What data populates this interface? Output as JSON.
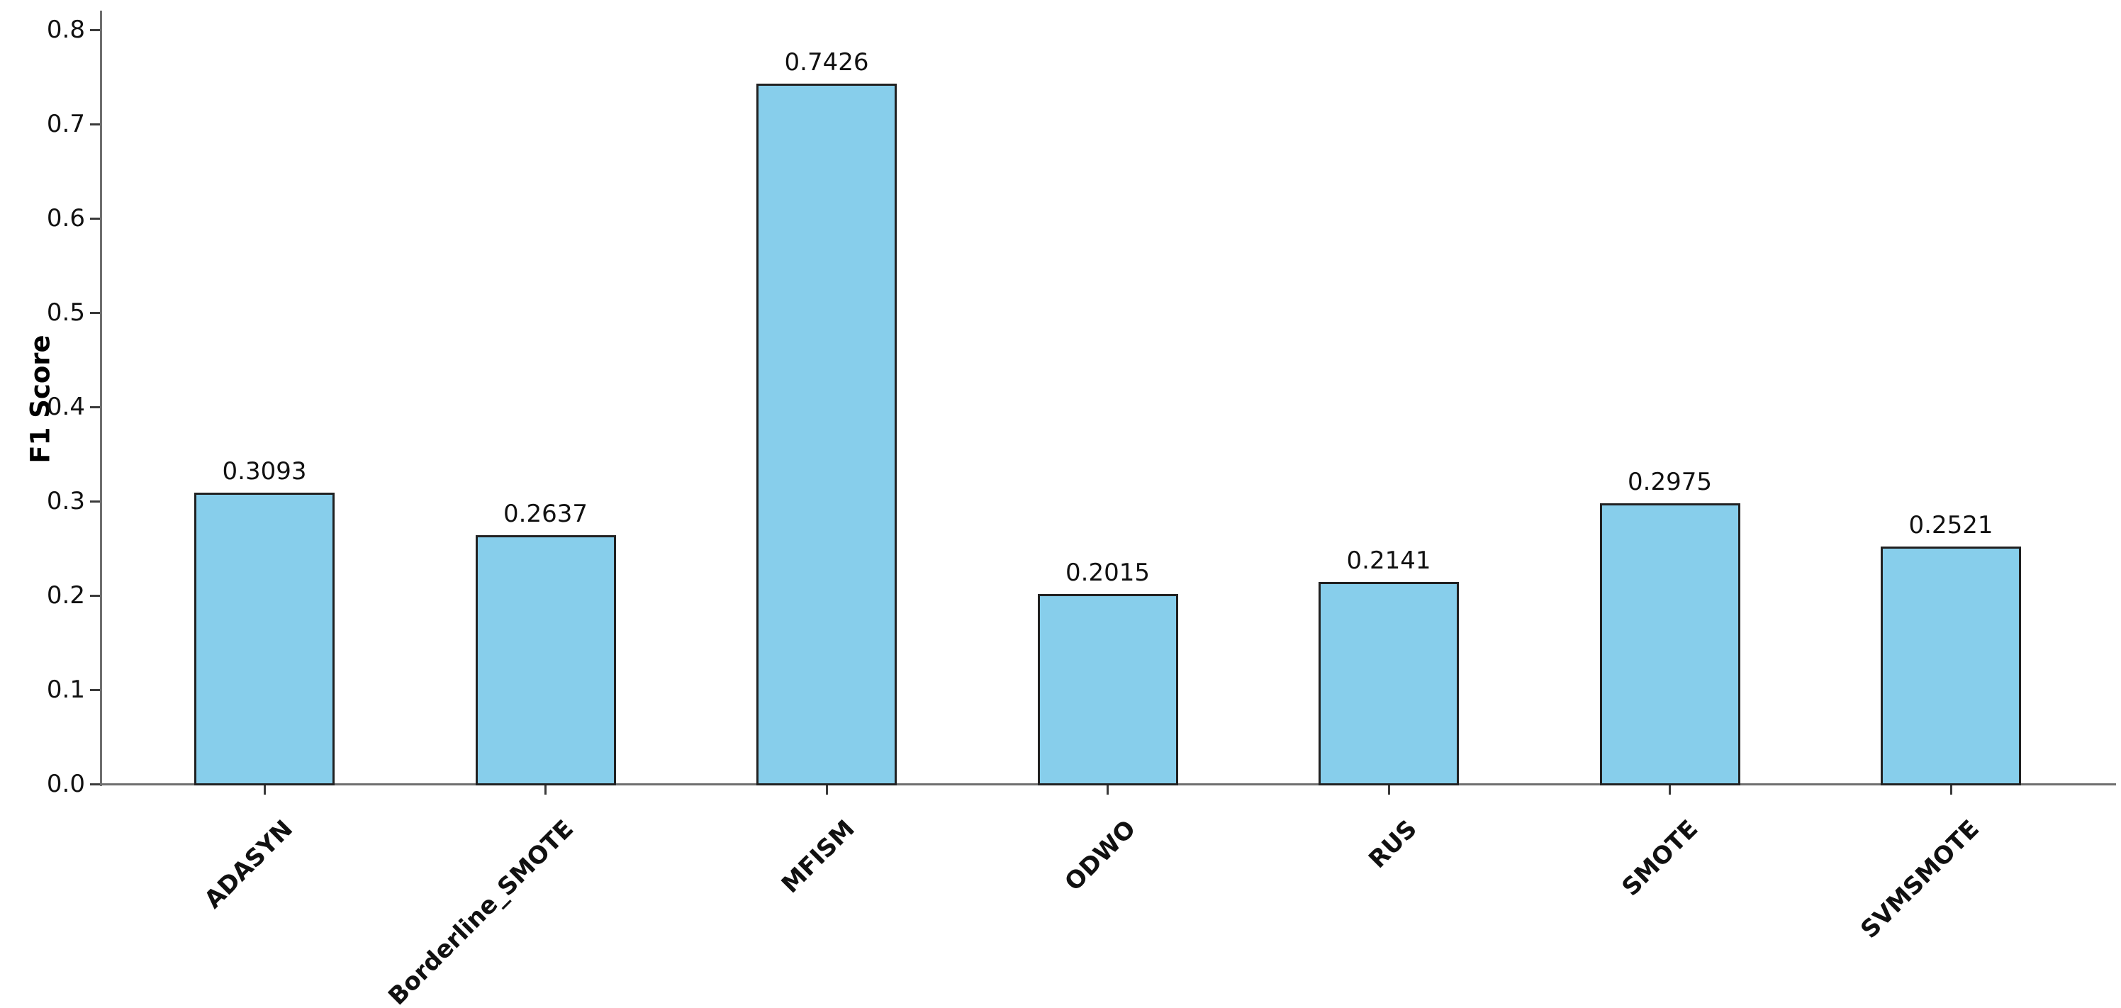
{
  "chart_data": {
    "type": "bar",
    "title": "",
    "xlabel": "",
    "ylabel": "F1 Score",
    "categories": [
      "ADASYN",
      "Borderline_SMOTE",
      "MFISM",
      "ODWO",
      "RUS",
      "SMOTE",
      "SVMSMOTE"
    ],
    "values": [
      0.3093,
      0.2637,
      0.7426,
      0.2015,
      0.2141,
      0.2975,
      0.2521
    ],
    "value_labels": [
      "0.3093",
      "0.2637",
      "0.7426",
      "0.2015",
      "0.2141",
      "0.2975",
      "0.2521"
    ],
    "ylim": [
      0.0,
      0.8
    ],
    "yticks": [
      0.0,
      0.1,
      0.2,
      0.3,
      0.4,
      0.5,
      0.6,
      0.7,
      0.8
    ],
    "ytick_labels": [
      "0.0",
      "0.1",
      "0.2",
      "0.3",
      "0.4",
      "0.5",
      "0.6",
      "0.7",
      "0.8"
    ],
    "xtick_rotation_deg": 45,
    "grid": false,
    "legend": null,
    "colors": {
      "bar_fill": "#87CEEB",
      "bar_edge": "#212121",
      "spine": "#6e6e6e",
      "tick_mark": "#3a3a3a",
      "text": "#111111",
      "background": "#ffffff"
    }
  }
}
